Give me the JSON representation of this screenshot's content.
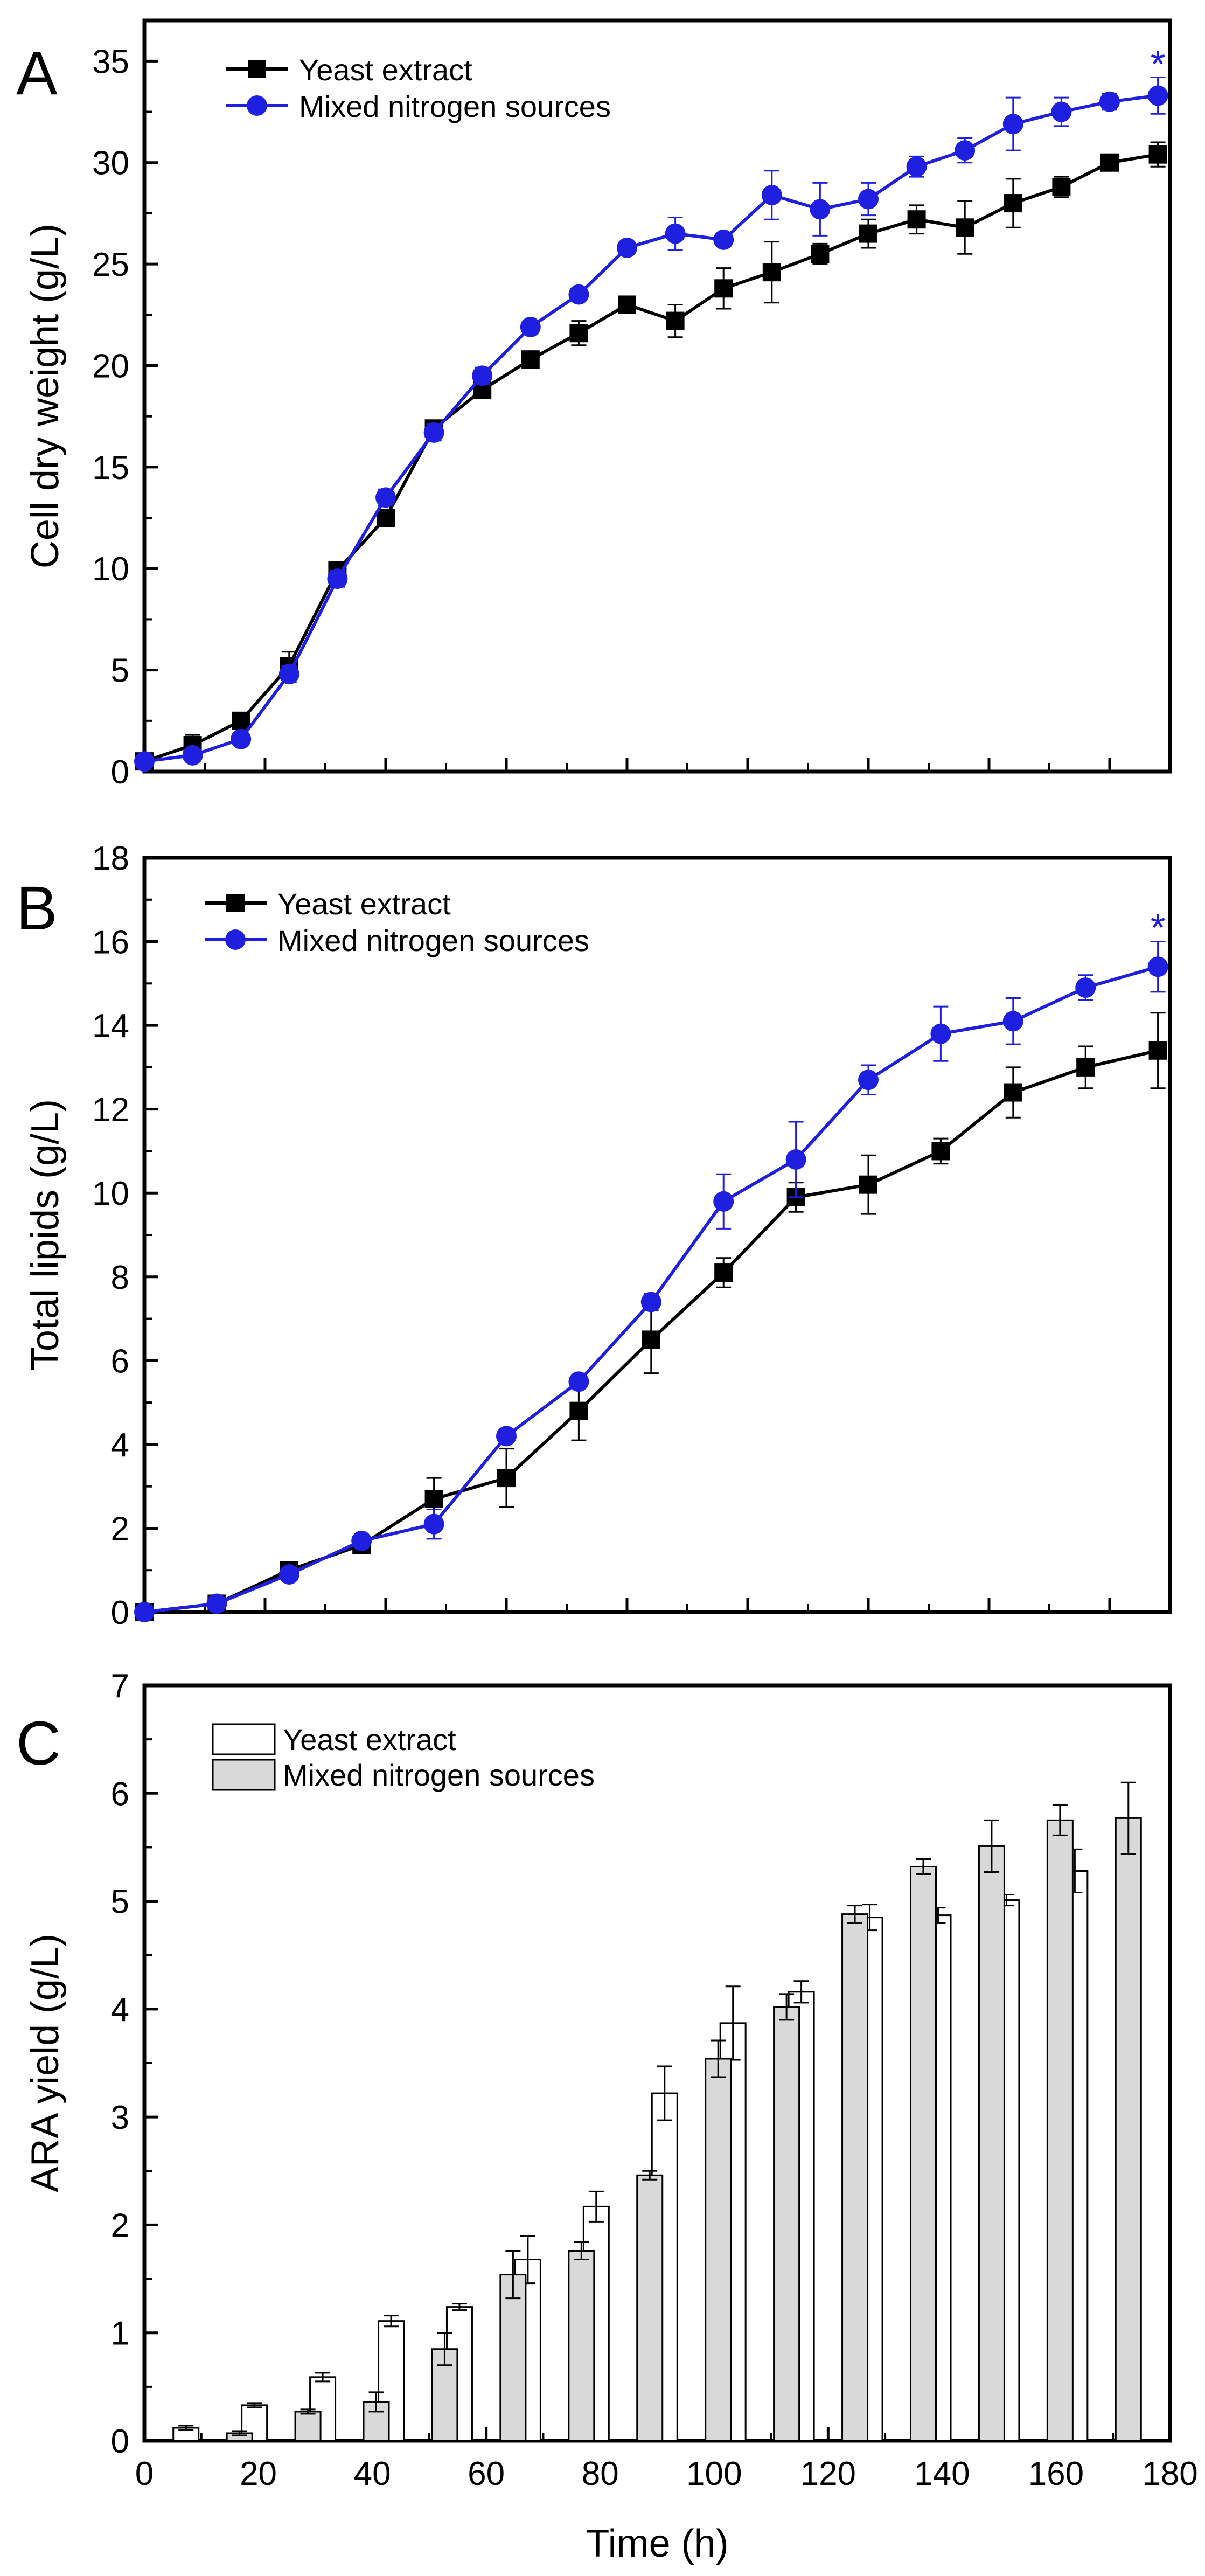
{
  "panel_labels": [
    "A",
    "B",
    "C"
  ],
  "colors": {
    "yeast": "#000000",
    "mixed": "#1f1fe0",
    "bar_yeast": "#ffffff",
    "bar_mixed": "#d9d9d9",
    "axis": "#000000"
  },
  "chart_data": [
    {
      "type": "line",
      "panel": "A",
      "ylabel": "Cell dry weight (g/L)",
      "xlabel": "",
      "xlim": [
        0,
        170
      ],
      "ylim": [
        0,
        37
      ],
      "yticks": [
        0,
        5,
        10,
        15,
        20,
        25,
        30,
        35
      ],
      "xticks": [],
      "legend_position": "top-left",
      "annotation": {
        "text": "*",
        "x": 168,
        "y": 35.2,
        "series": 1
      },
      "series": [
        {
          "name": "Yeast extract",
          "marker": "square",
          "x": [
            0,
            8,
            16,
            24,
            32,
            40,
            48,
            56,
            64,
            72,
            80,
            88,
            96,
            104,
            112,
            120,
            128,
            136,
            144,
            152,
            160,
            168
          ],
          "y": [
            0.5,
            1.3,
            2.5,
            5.2,
            9.9,
            12.5,
            16.9,
            18.8,
            20.3,
            21.6,
            23.0,
            22.2,
            23.8,
            24.6,
            25.5,
            26.5,
            27.2,
            26.8,
            28.0,
            28.8,
            30.0,
            30.4
          ],
          "err": [
            0.3,
            0.5,
            0.3,
            0.7,
            0.4,
            0.3,
            0.4,
            0.4,
            0.3,
            0.6,
            0.4,
            0.8,
            1.0,
            1.5,
            0.5,
            0.7,
            0.7,
            1.3,
            1.2,
            0.5,
            0.3,
            0.6
          ]
        },
        {
          "name": "Mixed nitrogen sources",
          "marker": "circle",
          "x": [
            0,
            8,
            16,
            24,
            32,
            40,
            48,
            56,
            64,
            72,
            80,
            88,
            96,
            104,
            112,
            120,
            128,
            136,
            144,
            152,
            160,
            168
          ],
          "y": [
            0.5,
            0.8,
            1.6,
            4.8,
            9.5,
            13.5,
            16.7,
            19.5,
            21.9,
            23.5,
            25.8,
            26.5,
            26.2,
            28.4,
            27.7,
            28.2,
            29.8,
            30.6,
            31.9,
            32.5,
            33.0,
            33.3
          ],
          "err": [
            0.2,
            0.3,
            0.3,
            0.4,
            0.4,
            0.4,
            0.4,
            0.4,
            0.3,
            0.3,
            0.3,
            0.8,
            0.3,
            1.2,
            1.3,
            0.8,
            0.5,
            0.6,
            1.3,
            0.7,
            0.4,
            0.9
          ]
        }
      ]
    },
    {
      "type": "line",
      "panel": "B",
      "ylabel": "Total lipids (g/L)",
      "xlabel": "",
      "xlim": [
        0,
        170
      ],
      "ylim": [
        0,
        18
      ],
      "yticks": [
        0,
        2,
        4,
        6,
        8,
        10,
        12,
        14,
        16,
        18
      ],
      "xticks": [],
      "legend_position": "top-left",
      "annotation": {
        "text": "*",
        "x": 168,
        "y": 16.5,
        "series": 1
      },
      "series": [
        {
          "name": "Yeast extract",
          "marker": "square",
          "x": [
            0,
            12,
            24,
            36,
            48,
            60,
            72,
            84,
            96,
            108,
            120,
            132,
            144,
            156,
            168
          ],
          "y": [
            0.0,
            0.2,
            1.0,
            1.6,
            2.7,
            3.2,
            4.8,
            6.5,
            8.1,
            9.9,
            10.2,
            11.0,
            12.4,
            13.0,
            13.4
          ],
          "err": [
            0.05,
            0.1,
            0.15,
            0.15,
            0.5,
            0.7,
            0.7,
            0.8,
            0.35,
            0.35,
            0.7,
            0.3,
            0.6,
            0.5,
            0.9
          ]
        },
        {
          "name": "Mixed nitrogen sources",
          "marker": "circle",
          "x": [
            0,
            12,
            24,
            36,
            48,
            60,
            72,
            84,
            96,
            108,
            120,
            132,
            144,
            156,
            168
          ],
          "y": [
            0.0,
            0.2,
            0.9,
            1.7,
            2.1,
            4.2,
            5.5,
            7.4,
            9.8,
            10.8,
            12.7,
            13.8,
            14.1,
            14.9,
            15.4
          ],
          "err": [
            0.05,
            0.05,
            0.1,
            0.1,
            0.35,
            0.15,
            0.15,
            0.2,
            0.65,
            0.9,
            0.35,
            0.65,
            0.55,
            0.3,
            0.6
          ]
        }
      ]
    },
    {
      "type": "bar",
      "panel": "C",
      "ylabel": "ARA yield (g/L)",
      "xlabel": "Time (h)",
      "xlim": [
        0,
        180
      ],
      "ylim": [
        0,
        7
      ],
      "yticks": [
        0,
        1,
        2,
        3,
        4,
        5,
        6,
        7
      ],
      "xticks": [
        0,
        20,
        40,
        60,
        80,
        100,
        120,
        140,
        160,
        180
      ],
      "legend_position": "top-left",
      "x": [
        12,
        24,
        36,
        48,
        60,
        72,
        84,
        96,
        108,
        120,
        132,
        144,
        156,
        168
      ],
      "series": [
        {
          "name": "Yeast extract",
          "values": [
            0.12,
            0.33,
            0.59,
            1.11,
            1.24,
            1.68,
            2.17,
            3.22,
            3.87,
            4.16,
            4.85,
            4.87,
            5.01,
            5.28
          ],
          "err": [
            0.02,
            0.02,
            0.04,
            0.05,
            0.03,
            0.22,
            0.14,
            0.25,
            0.34,
            0.1,
            0.12,
            0.07,
            0.05,
            0.2
          ]
        },
        {
          "name": "Mixed nitrogen sources",
          "values": [
            0.07,
            0.27,
            0.36,
            0.85,
            1.54,
            1.76,
            2.46,
            3.54,
            4.02,
            4.88,
            5.32,
            5.51,
            5.75,
            5.77
          ],
          "err": [
            0.02,
            0.02,
            0.09,
            0.15,
            0.22,
            0.08,
            0.04,
            0.17,
            0.12,
            0.08,
            0.07,
            0.24,
            0.14,
            0.33
          ]
        }
      ]
    }
  ]
}
